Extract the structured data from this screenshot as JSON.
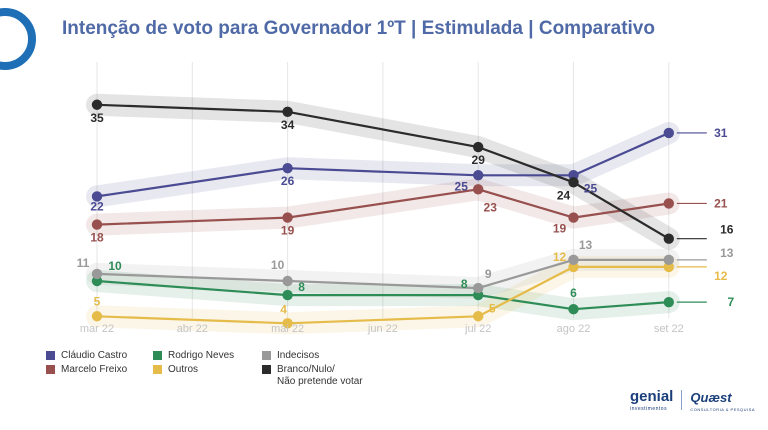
{
  "title": "Intenção de voto para Governador 1ºT | Estimulada | Comparativo",
  "chart_data": {
    "type": "line",
    "title": "Intenção de voto para Governador 1ºT | Estimulada | Comparativo",
    "xlabel": "",
    "ylabel": "",
    "ylim": [
      0,
      40
    ],
    "grid": "vertical",
    "legend_position": "bottom-left",
    "categories": [
      "mar 22",
      "abr 22",
      "mai 22",
      "jun 22",
      "jul 22",
      "ago 22",
      "set 22"
    ],
    "series": [
      {
        "name": "Cláudio Castro",
        "color": "#4b4b93",
        "points": [
          [
            0,
            22
          ],
          [
            2,
            26
          ],
          [
            4,
            25
          ],
          [
            5,
            25
          ],
          [
            6,
            31
          ]
        ]
      },
      {
        "name": "Marcelo Freixo",
        "color": "#97504e",
        "points": [
          [
            0,
            18
          ],
          [
            2,
            19
          ],
          [
            4,
            23
          ],
          [
            5,
            19
          ],
          [
            6,
            21
          ]
        ]
      },
      {
        "name": "Rodrigo Neves",
        "color": "#2e8c57",
        "points": [
          [
            0,
            10
          ],
          [
            2,
            8
          ],
          [
            4,
            8
          ],
          [
            5,
            6
          ],
          [
            6,
            7
          ]
        ]
      },
      {
        "name": "Outros",
        "color": "#e5bb4a",
        "points": [
          [
            0,
            5
          ],
          [
            2,
            4
          ],
          [
            4,
            5
          ],
          [
            5,
            12
          ],
          [
            6,
            12
          ]
        ]
      },
      {
        "name": "Indecisos",
        "color": "#999999",
        "points": [
          [
            0,
            11
          ],
          [
            2,
            10
          ],
          [
            4,
            9
          ],
          [
            5,
            13
          ],
          [
            6,
            13
          ]
        ]
      },
      {
        "name": "Branco/Nulo/\nNão pretende votar",
        "color": "#2b2b2b",
        "points": [
          [
            0,
            35
          ],
          [
            2,
            34
          ],
          [
            4,
            29
          ],
          [
            5,
            24
          ],
          [
            6,
            16
          ]
        ]
      }
    ],
    "point_labels": [
      {
        "series": 0,
        "text": "22"
      },
      {
        "series": 0,
        "text": "26"
      },
      {
        "series": 0,
        "text": "25"
      },
      {
        "series": 0,
        "text": "25"
      },
      {
        "series": 0,
        "text": "31"
      },
      {
        "series": 1,
        "text": "18"
      },
      {
        "series": 1,
        "text": "19"
      },
      {
        "series": 1,
        "text": "23"
      },
      {
        "series": 1,
        "text": "19"
      },
      {
        "series": 1,
        "text": "21"
      },
      {
        "series": 2,
        "text": "10"
      },
      {
        "series": 2,
        "text": "8"
      },
      {
        "series": 2,
        "text": "8"
      },
      {
        "series": 2,
        "text": "6"
      },
      {
        "series": 2,
        "text": "7"
      },
      {
        "series": 3,
        "text": "5"
      },
      {
        "series": 3,
        "text": "4"
      },
      {
        "series": 3,
        "text": "5"
      },
      {
        "series": 3,
        "text": "12"
      },
      {
        "series": 3,
        "text": "12"
      },
      {
        "series": 4,
        "text": "11"
      },
      {
        "series": 4,
        "text": "10"
      },
      {
        "series": 4,
        "text": "9"
      },
      {
        "series": 4,
        "text": "13"
      },
      {
        "series": 4,
        "text": "13"
      },
      {
        "series": 5,
        "text": "35"
      },
      {
        "series": 5,
        "text": "34"
      },
      {
        "series": 5,
        "text": "29"
      },
      {
        "series": 5,
        "text": "24"
      },
      {
        "series": 5,
        "text": "16"
      }
    ]
  },
  "legend": [
    {
      "label": "Cláudio Castro",
      "color": "#4b4b93"
    },
    {
      "label": "Marcelo Freixo",
      "color": "#97504e"
    },
    {
      "label": "Rodrigo Neves",
      "color": "#2e8c57"
    },
    {
      "label": "Outros",
      "color": "#e5bb4a"
    },
    {
      "label": "Indecisos",
      "color": "#999999"
    },
    {
      "label": "Branco/Nulo/\nNão pretende votar",
      "color": "#2b2b2b"
    }
  ],
  "branding": {
    "genial": "genial",
    "genial_sub": "investimentos",
    "quaest": "Quæst",
    "quaest_sub": "CONSULTORIA & PESQUISA"
  }
}
